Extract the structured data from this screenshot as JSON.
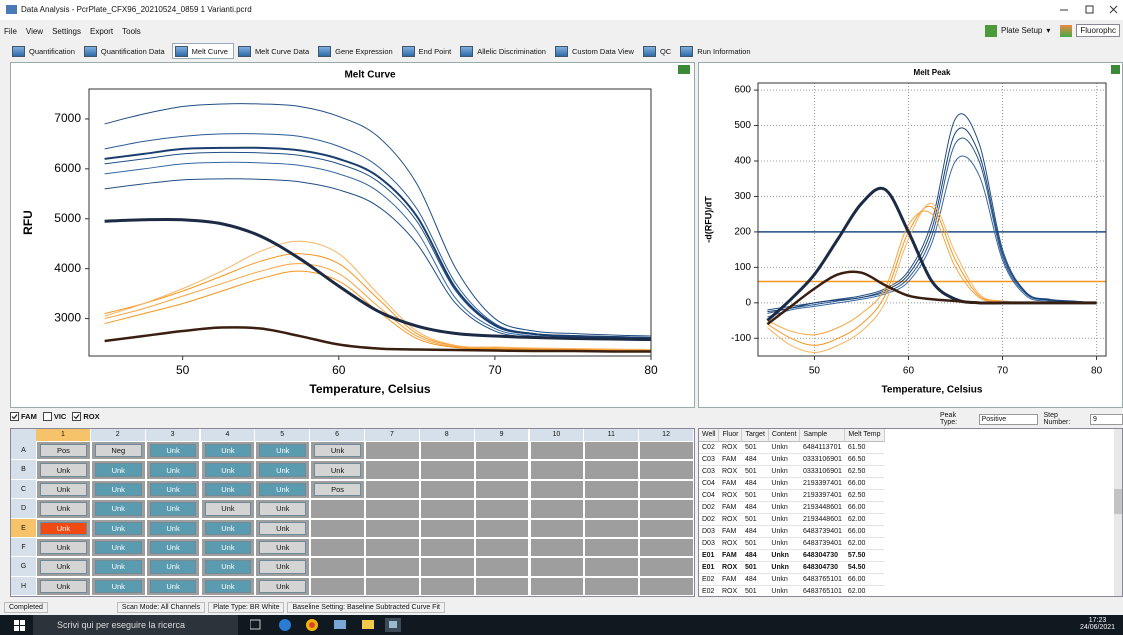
{
  "window": {
    "title": "Data Analysis - PcrPlate_CFX96_20210524_0859 1 Varianti.pcrd",
    "menu": [
      "File",
      "View",
      "Settings",
      "Export",
      "Tools"
    ],
    "toolbar_right": [
      "Plate Setup",
      "Fluorophc"
    ]
  },
  "tabs": [
    {
      "label": "Quantification",
      "active": false
    },
    {
      "label": "Quantification Data",
      "active": false
    },
    {
      "label": "Melt Curve",
      "active": true
    },
    {
      "label": "Melt Curve Data",
      "active": false
    },
    {
      "label": "Gene Expression",
      "active": false
    },
    {
      "label": "End Point",
      "active": false
    },
    {
      "label": "Allelic Discrimination",
      "active": false
    },
    {
      "label": "Custom Data View",
      "active": false
    },
    {
      "label": "QC",
      "active": false
    },
    {
      "label": "Run Information",
      "active": false
    }
  ],
  "chart_data": [
    {
      "type": "line",
      "title": "Melt Curve",
      "x_label": "Temperature, Celsius",
      "y_label": "RFU",
      "x": [
        45,
        47.5,
        50,
        52.5,
        55,
        57.5,
        60,
        62.5,
        65,
        67.5,
        70,
        72.5,
        75,
        77.5,
        80
      ],
      "xlim": [
        44,
        80
      ],
      "ylim": [
        2250,
        7600
      ],
      "xticks": [
        50,
        60,
        70,
        80
      ],
      "yticks": [
        3000,
        4000,
        5000,
        6000,
        7000
      ],
      "grid": false,
      "series": [
        {
          "color": "#1f4e84",
          "width": 1,
          "values": [
            6900,
            7100,
            7250,
            7300,
            7300,
            7250,
            7050,
            6650,
            5700,
            4000,
            3000,
            2750,
            2700,
            2670,
            2650
          ]
        },
        {
          "color": "#2a5a94",
          "width": 1,
          "values": [
            6400,
            6550,
            6650,
            6700,
            6700,
            6650,
            6450,
            6050,
            5200,
            3700,
            2900,
            2700,
            2660,
            2640,
            2620
          ]
        },
        {
          "color": "#1f4e84",
          "width": 1,
          "values": [
            6100,
            6200,
            6300,
            6330,
            6320,
            6270,
            6100,
            5750,
            4950,
            3550,
            2850,
            2680,
            2640,
            2620,
            2600
          ]
        },
        {
          "color": "#3567a3",
          "width": 1,
          "values": [
            5900,
            6000,
            6100,
            6130,
            6120,
            6070,
            5900,
            5550,
            4750,
            3400,
            2800,
            2650,
            2620,
            2600,
            2580
          ]
        },
        {
          "color": "#1f4e84",
          "width": 1,
          "values": [
            5600,
            5700,
            5780,
            5800,
            5790,
            5740,
            5580,
            5250,
            4500,
            3300,
            2750,
            2630,
            2600,
            2580,
            2560
          ]
        },
        {
          "color": "#1a3f6e",
          "width": 2,
          "values": [
            6200,
            6300,
            6400,
            6420,
            6420,
            6370,
            6200,
            5850,
            5050,
            3600,
            2870,
            2690,
            2650,
            2630,
            2610
          ]
        },
        {
          "color": "#f5961e",
          "width": 1,
          "values": [
            3100,
            3300,
            3550,
            3850,
            4150,
            4300,
            4100,
            3400,
            2700,
            2450,
            2420,
            2400,
            2390,
            2380,
            2370
          ]
        },
        {
          "color": "#f7a440",
          "width": 1,
          "values": [
            3000,
            3200,
            3450,
            3700,
            3950,
            4100,
            3900,
            3250,
            2650,
            2430,
            2400,
            2390,
            2380,
            2370,
            2360
          ]
        },
        {
          "color": "#f5961e",
          "width": 1,
          "values": [
            2900,
            3100,
            3300,
            3550,
            3800,
            3950,
            3750,
            3150,
            2600,
            2420,
            2390,
            2380,
            2370,
            2360,
            2350
          ]
        },
        {
          "color": "#f9b463",
          "width": 1,
          "values": [
            3050,
            3300,
            3600,
            3950,
            4350,
            4550,
            4300,
            3500,
            2750,
            2460,
            2430,
            2410,
            2400,
            2390,
            2380
          ]
        },
        {
          "color": "#1b2a45",
          "width": 3,
          "values": [
            4950,
            4980,
            4980,
            4900,
            4650,
            4200,
            3650,
            3150,
            2850,
            2700,
            2650,
            2620,
            2600,
            2590,
            2580
          ]
        },
        {
          "color": "#3a1f10",
          "width": 2.5,
          "values": [
            2550,
            2650,
            2750,
            2820,
            2800,
            2650,
            2480,
            2400,
            2380,
            2370,
            2360,
            2350,
            2350,
            2340,
            2340
          ]
        }
      ]
    },
    {
      "type": "line",
      "title": "Melt Peak",
      "x_label": "Temperature, Celsius",
      "y_label": "-d(RFU)/dT",
      "x": [
        45,
        47.5,
        50,
        52.5,
        55,
        57.5,
        60,
        62.5,
        65,
        67.5,
        70,
        72.5,
        75,
        77.5,
        80
      ],
      "xlim": [
        44,
        81
      ],
      "ylim": [
        -150,
        620
      ],
      "xticks": [
        50,
        60,
        70,
        80
      ],
      "yticks": [
        -100,
        0,
        100,
        200,
        300,
        400,
        500,
        600
      ],
      "grid": true,
      "hlines": [
        {
          "value": 200,
          "color": "#1f4e84"
        },
        {
          "value": 60,
          "color": "#f5961e"
        }
      ],
      "series": [
        {
          "color": "#1f4e84",
          "width": 1,
          "values": [
            -20,
            -10,
            0,
            10,
            20,
            40,
            90,
            230,
            520,
            450,
            150,
            30,
            10,
            5,
            0
          ]
        },
        {
          "color": "#2a5a94",
          "width": 1,
          "values": [
            -30,
            -15,
            -5,
            5,
            15,
            30,
            70,
            190,
            450,
            400,
            130,
            25,
            8,
            3,
            0
          ]
        },
        {
          "color": "#3567a3",
          "width": 1,
          "values": [
            -40,
            -20,
            -10,
            0,
            10,
            25,
            60,
            170,
            400,
            360,
            120,
            20,
            5,
            2,
            0
          ]
        },
        {
          "color": "#1a3f6e",
          "width": 1,
          "values": [
            -25,
            -15,
            0,
            8,
            15,
            35,
            80,
            210,
            480,
            420,
            140,
            28,
            8,
            4,
            0
          ]
        },
        {
          "color": "#f5961e",
          "width": 1,
          "values": [
            -60,
            -100,
            -120,
            -100,
            -60,
            20,
            200,
            270,
            120,
            20,
            5,
            0,
            0,
            0,
            0
          ]
        },
        {
          "color": "#f7a440",
          "width": 1,
          "values": [
            -50,
            -80,
            -90,
            -70,
            -30,
            40,
            220,
            250,
            100,
            15,
            3,
            0,
            0,
            0,
            0
          ]
        },
        {
          "color": "#f9b463",
          "width": 1,
          "values": [
            -70,
            -120,
            -140,
            -120,
            -80,
            0,
            180,
            280,
            140,
            25,
            5,
            0,
            0,
            0,
            0
          ]
        },
        {
          "color": "#1b2a45",
          "width": 3,
          "values": [
            -50,
            10,
            80,
            180,
            280,
            320,
            200,
            60,
            10,
            0,
            0,
            0,
            0,
            0,
            0
          ]
        },
        {
          "color": "#3a1f10",
          "width": 2.5,
          "values": [
            -60,
            -10,
            40,
            80,
            85,
            50,
            20,
            10,
            5,
            0,
            0,
            0,
            0,
            0,
            0
          ]
        }
      ]
    }
  ],
  "channels": [
    {
      "label": "FAM",
      "checked": true
    },
    {
      "label": "VIC",
      "checked": false
    },
    {
      "label": "ROX",
      "checked": true
    }
  ],
  "peak_type": {
    "label": "Peak Type:",
    "value": "Positive"
  },
  "step_number": {
    "label": "Step Number:",
    "value": "9"
  },
  "plate": {
    "columns": [
      "1",
      "2",
      "3",
      "4",
      "5",
      "6",
      "7",
      "8",
      "9",
      "10",
      "11",
      "12"
    ],
    "rows": [
      {
        "label": "A",
        "cells": [
          {
            "text": "Pos",
            "color": "#d4d4d4"
          },
          {
            "text": "Neg",
            "color": "#d4d4d4"
          },
          {
            "text": "Unk",
            "color": "#5a9bb0"
          },
          {
            "text": "Unk",
            "color": "#5a9bb0"
          },
          {
            "text": "Unk",
            "color": "#5a9bb0"
          },
          {
            "text": "Unk",
            "color": "#d4d4d4"
          }
        ]
      },
      {
        "label": "B",
        "cells": [
          {
            "text": "Unk",
            "color": "#d4d4d4"
          },
          {
            "text": "Unk",
            "color": "#5a9bb0"
          },
          {
            "text": "Unk",
            "color": "#5a9bb0"
          },
          {
            "text": "Unk",
            "color": "#5a9bb0"
          },
          {
            "text": "Unk",
            "color": "#5a9bb0"
          },
          {
            "text": "Unk",
            "color": "#d4d4d4"
          }
        ]
      },
      {
        "label": "C",
        "cells": [
          {
            "text": "Unk",
            "color": "#d4d4d4"
          },
          {
            "text": "Unk",
            "color": "#5a9bb0"
          },
          {
            "text": "Unk",
            "color": "#5a9bb0"
          },
          {
            "text": "Unk",
            "color": "#5a9bb0"
          },
          {
            "text": "Unk",
            "color": "#5a9bb0"
          },
          {
            "text": "Pos",
            "color": "#d4d4d4"
          }
        ]
      },
      {
        "label": "D",
        "cells": [
          {
            "text": "Unk",
            "color": "#d4d4d4"
          },
          {
            "text": "Unk",
            "color": "#5a9bb0"
          },
          {
            "text": "Unk",
            "color": "#5a9bb0"
          },
          {
            "text": "Unk",
            "color": "#d4d4d4"
          },
          {
            "text": "Unk",
            "color": "#d4d4d4"
          }
        ]
      },
      {
        "label": "E",
        "cells": [
          {
            "text": "Unk",
            "color": "#f04a14"
          },
          {
            "text": "Unk",
            "color": "#5a9bb0"
          },
          {
            "text": "Unk",
            "color": "#5a9bb0"
          },
          {
            "text": "Unk",
            "color": "#5a9bb0"
          },
          {
            "text": "Unk",
            "color": "#d4d4d4"
          }
        ]
      },
      {
        "label": "F",
        "cells": [
          {
            "text": "Unk",
            "color": "#d4d4d4"
          },
          {
            "text": "Unk",
            "color": "#5a9bb0"
          },
          {
            "text": "Unk",
            "color": "#5a9bb0"
          },
          {
            "text": "Unk",
            "color": "#5a9bb0"
          },
          {
            "text": "Unk",
            "color": "#d4d4d4"
          }
        ]
      },
      {
        "label": "G",
        "cells": [
          {
            "text": "Unk",
            "color": "#d4d4d4"
          },
          {
            "text": "Unk",
            "color": "#5a9bb0"
          },
          {
            "text": "Unk",
            "color": "#5a9bb0"
          },
          {
            "text": "Unk",
            "color": "#5a9bb0"
          },
          {
            "text": "Unk",
            "color": "#d4d4d4"
          }
        ]
      },
      {
        "label": "H",
        "cells": [
          {
            "text": "Unk",
            "color": "#d4d4d4"
          },
          {
            "text": "Unk",
            "color": "#5a9bb0"
          },
          {
            "text": "Unk",
            "color": "#5a9bb0"
          },
          {
            "text": "Unk",
            "color": "#5a9bb0"
          },
          {
            "text": "Unk",
            "color": "#d4d4d4"
          }
        ]
      }
    ]
  },
  "table": {
    "headers": [
      "Well",
      "Fluor",
      "Target",
      "Content",
      "Sample",
      "Melt Temp"
    ],
    "rows": [
      {
        "bold": false,
        "cells": [
          "C02",
          "ROX",
          "501",
          "Unkn",
          "6484113701",
          "61.50"
        ]
      },
      {
        "bold": false,
        "cells": [
          "C03",
          "FAM",
          "484",
          "Unkn",
          "0333106901",
          "66.50"
        ]
      },
      {
        "bold": false,
        "cells": [
          "C03",
          "ROX",
          "501",
          "Unkn",
          "0333106901",
          "62.50"
        ]
      },
      {
        "bold": false,
        "cells": [
          "C04",
          "FAM",
          "484",
          "Unkn",
          "2193397401",
          "66.00"
        ]
      },
      {
        "bold": false,
        "cells": [
          "C04",
          "ROX",
          "501",
          "Unkn",
          "2193397401",
          "62.50"
        ]
      },
      {
        "bold": false,
        "cells": [
          "D02",
          "FAM",
          "484",
          "Unkn",
          "2193448601",
          "66.00"
        ]
      },
      {
        "bold": false,
        "cells": [
          "D02",
          "ROX",
          "501",
          "Unkn",
          "2193448601",
          "62.00"
        ]
      },
      {
        "bold": false,
        "cells": [
          "D03",
          "FAM",
          "484",
          "Unkn",
          "6483739401",
          "66.00"
        ]
      },
      {
        "bold": false,
        "cells": [
          "D03",
          "ROX",
          "501",
          "Unkn",
          "6483739401",
          "62.00"
        ]
      },
      {
        "bold": true,
        "cells": [
          "E01",
          "FAM",
          "484",
          "Unkn",
          "648304730",
          "57.50"
        ]
      },
      {
        "bold": true,
        "cells": [
          "E01",
          "ROX",
          "501",
          "Unkn",
          "648304730",
          "54.50"
        ]
      },
      {
        "bold": false,
        "cells": [
          "E02",
          "FAM",
          "484",
          "Unkn",
          "6483765101",
          "66.00"
        ]
      },
      {
        "bold": false,
        "cells": [
          "E02",
          "ROX",
          "501",
          "Unkn",
          "6483765101",
          "62.00"
        ]
      }
    ]
  },
  "status_bar": [
    "Completed",
    "Scan Mode: All Channels",
    "Plate Type: BR White",
    "Baseline Setting: Baseline Subtracted Curve Fit"
  ],
  "taskbar": {
    "search": "Scrivi qui per eseguire la ricerca",
    "time": "17:23",
    "date": "24/06/2021"
  }
}
